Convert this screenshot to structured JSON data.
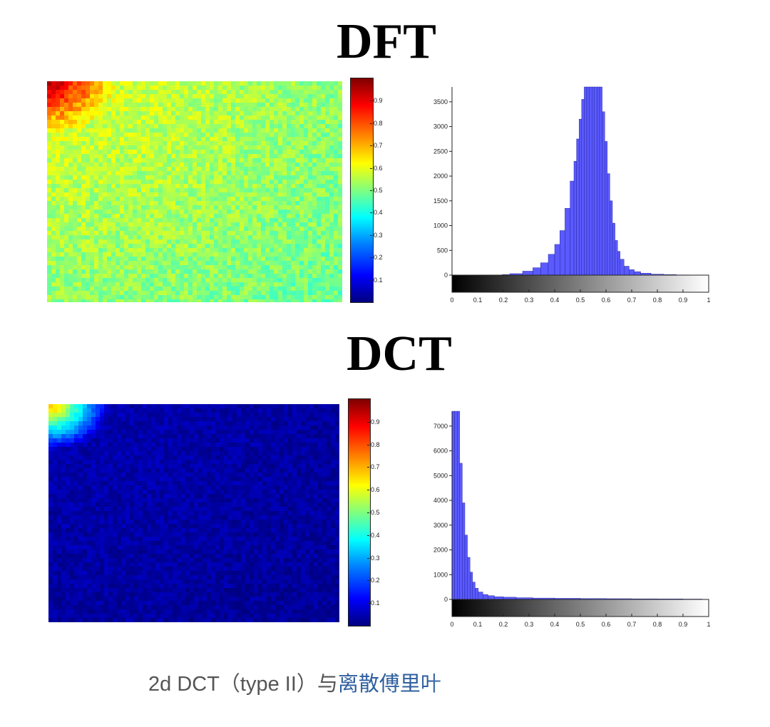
{
  "titles": {
    "dft": "DFT",
    "dct": "DCT"
  },
  "caption": {
    "prefix": "2d DCT（type II）与",
    "link": "离散傅里叶"
  },
  "colorbar_ticks": [
    "0.1",
    "0.2",
    "0.3",
    "0.4",
    "0.5",
    "0.6",
    "0.7",
    "0.8",
    "0.9"
  ],
  "colors": {
    "bar_fill": "#5a5aff",
    "bar_stroke": "#1a1a8a",
    "link": "#2f5f9f"
  },
  "chart_data": [
    {
      "id": "dft-histogram",
      "type": "bar",
      "title": "",
      "xlabel": "",
      "ylabel": "",
      "xlim": [
        0,
        1
      ],
      "ylim": [
        0,
        3800
      ],
      "xticks": [
        "0",
        "0.1",
        "0.2",
        "0.3",
        "0.4",
        "0.5",
        "0.6",
        "0.7",
        "0.8",
        "0.9",
        "1"
      ],
      "yticks": [
        "0",
        "500",
        "1000",
        "1500",
        "2000",
        "2500",
        "3000",
        "3500"
      ],
      "x": [
        0.2,
        0.25,
        0.3,
        0.33,
        0.36,
        0.39,
        0.41,
        0.43,
        0.45,
        0.47,
        0.48,
        0.49,
        0.5,
        0.51,
        0.52,
        0.53,
        0.54,
        0.55,
        0.56,
        0.57,
        0.58,
        0.59,
        0.6,
        0.61,
        0.62,
        0.63,
        0.64,
        0.65,
        0.66,
        0.68,
        0.7,
        0.72,
        0.75,
        0.8,
        0.85,
        0.9
      ],
      "values": [
        10,
        30,
        80,
        150,
        250,
        420,
        620,
        900,
        1350,
        1900,
        2300,
        2750,
        3150,
        3550,
        3800,
        3800,
        3800,
        3800,
        3800,
        3800,
        3800,
        3300,
        2700,
        2050,
        1500,
        1050,
        700,
        480,
        320,
        180,
        110,
        70,
        40,
        20,
        10,
        5
      ],
      "grayscale_bar": true
    },
    {
      "id": "dct-histogram",
      "type": "bar",
      "title": "",
      "xlabel": "",
      "ylabel": "",
      "xlim": [
        0,
        1
      ],
      "ylim": [
        0,
        7600
      ],
      "xticks": [
        "0",
        "0.1",
        "0.2",
        "0.3",
        "0.4",
        "0.5",
        "0.6",
        "0.7",
        "0.8",
        "0.9",
        "1"
      ],
      "yticks": [
        "0",
        "1000",
        "2000",
        "3000",
        "4000",
        "5000",
        "6000",
        "7000"
      ],
      "x": [
        0.005,
        0.015,
        0.025,
        0.035,
        0.045,
        0.055,
        0.065,
        0.075,
        0.085,
        0.095,
        0.11,
        0.13,
        0.15,
        0.18,
        0.22,
        0.28,
        0.35,
        0.45,
        0.55,
        0.65,
        0.75,
        0.85,
        0.95
      ],
      "values": [
        7600,
        7600,
        7600,
        5500,
        3900,
        2600,
        1700,
        1100,
        700,
        450,
        300,
        200,
        150,
        110,
        90,
        70,
        55,
        45,
        35,
        30,
        25,
        20,
        15
      ],
      "grayscale_bar": true
    },
    {
      "id": "dft-heatmap",
      "type": "heatmap",
      "colorbar_range": [
        0,
        1
      ],
      "description_values": {
        "corner_top_left": 0.85,
        "typical": 0.55,
        "bottom_right": 0.45
      }
    },
    {
      "id": "dct-heatmap",
      "type": "heatmap",
      "colorbar_range": [
        0,
        1
      ],
      "description_values": {
        "corner_top_left": 0.7,
        "typical": 0.05,
        "bottom_right": 0.02
      }
    }
  ]
}
